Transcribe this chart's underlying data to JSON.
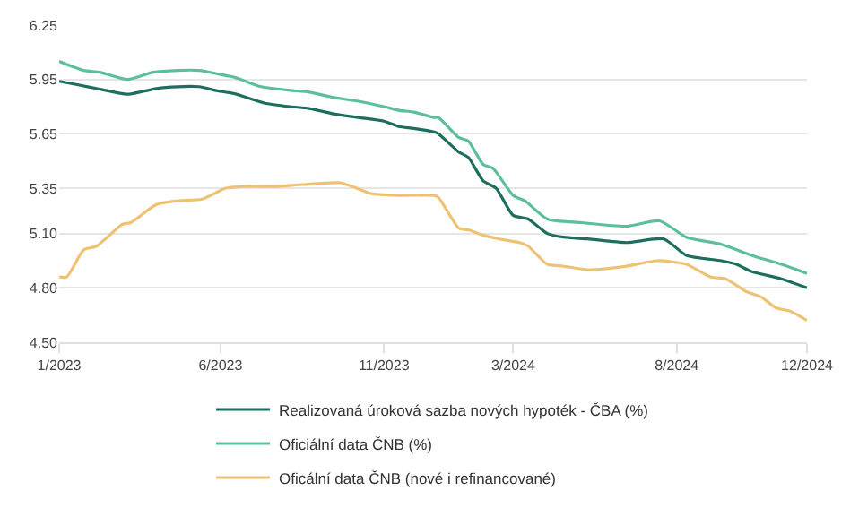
{
  "chart_data": {
    "type": "line",
    "xlim": [
      "2023-01-01",
      "2024-12-01"
    ],
    "xticks": [
      {
        "value": "2023-01",
        "label": "1/2023"
      },
      {
        "value": "2023-06",
        "label": "6/2023"
      },
      {
        "value": "2023-11",
        "label": "11/2023"
      },
      {
        "value": "2024-03",
        "label": "3/2024"
      },
      {
        "value": "2024-08",
        "label": "8/2024"
      },
      {
        "value": "2024-12",
        "label": "12/2024"
      }
    ],
    "ylim": [
      4.5,
      6.25
    ],
    "yticks": [
      {
        "value": 4.5,
        "label": "4.50"
      },
      {
        "value": 4.8,
        "label": "4.80"
      },
      {
        "value": 5.1,
        "label": "5.10"
      },
      {
        "value": 5.35,
        "label": "5.35"
      },
      {
        "value": 5.65,
        "label": "5.65"
      },
      {
        "value": 5.95,
        "label": "5.95"
      },
      {
        "value": 6.25,
        "label": "6.25"
      }
    ],
    "grid": "y",
    "legend": "bottom",
    "line_style": "solid",
    "series": [
      {
        "name": "Realizovaná úroková sazba nových hypoték - ČBA (%)",
        "color": "#1d6e5e",
        "x": [
          "2023-01-01",
          "2023-01-19",
          "2023-02-05",
          "2023-03-03",
          "2023-03-09",
          "2023-04-02",
          "2023-04-22",
          "2023-05-12",
          "2023-05-27",
          "2023-06-15",
          "2023-07-12",
          "2023-08-05",
          "2023-08-23",
          "2023-09-15",
          "2023-10-08",
          "2023-11-01",
          "2023-11-15",
          "2023-11-29",
          "2023-12-18",
          "2023-12-22",
          "2024-01-10",
          "2024-01-19",
          "2024-02-02",
          "2024-02-14",
          "2024-03-01",
          "2024-03-15",
          "2024-04-02",
          "2024-04-17",
          "2024-05-10",
          "2024-06-15",
          "2024-07-20",
          "2024-08-10",
          "2024-09-12",
          "2024-09-26",
          "2024-10-10",
          "2024-11-07",
          "2024-12-01"
        ],
        "values": [
          5.94,
          5.92,
          5.9,
          5.87,
          5.87,
          5.9,
          5.91,
          5.91,
          5.89,
          5.87,
          5.82,
          5.8,
          5.79,
          5.76,
          5.74,
          5.72,
          5.69,
          5.68,
          5.66,
          5.65,
          5.55,
          5.52,
          5.39,
          5.35,
          5.2,
          5.18,
          5.1,
          5.08,
          5.07,
          5.05,
          5.07,
          4.98,
          4.95,
          4.93,
          4.89,
          4.85,
          4.8
        ]
      },
      {
        "name": "Oficiální data ČNB (%)",
        "color": "#5bbf9c",
        "x": [
          "2023-01-01",
          "2023-01-24",
          "2023-02-08",
          "2023-03-06",
          "2023-03-30",
          "2023-04-22",
          "2023-05-12",
          "2023-05-30",
          "2023-06-15",
          "2023-07-09",
          "2023-08-05",
          "2023-08-23",
          "2023-09-15",
          "2023-10-08",
          "2023-11-01",
          "2023-11-15",
          "2023-11-29",
          "2023-12-18",
          "2023-12-22",
          "2024-01-10",
          "2024-01-19",
          "2024-02-02",
          "2024-02-11",
          "2024-03-01",
          "2024-03-12",
          "2024-04-02",
          "2024-05-04",
          "2024-06-15",
          "2024-07-16",
          "2024-08-10",
          "2024-09-12",
          "2024-10-10",
          "2024-11-07",
          "2024-12-01"
        ],
        "values": [
          6.05,
          6,
          5.99,
          5.95,
          5.99,
          6,
          6,
          5.98,
          5.96,
          5.91,
          5.89,
          5.88,
          5.85,
          5.83,
          5.8,
          5.78,
          5.77,
          5.74,
          5.74,
          5.63,
          5.61,
          5.48,
          5.46,
          5.31,
          5.28,
          5.18,
          5.16,
          5.14,
          5.17,
          5.08,
          5.04,
          4.98,
          4.93,
          4.88
        ]
      },
      {
        "name": "Oficální data ČNB (nové i refinancované)",
        "color": "#eec272",
        "x": [
          "2023-01-01",
          "2023-01-08",
          "2023-01-24",
          "2023-02-05",
          "2023-03-01",
          "2023-03-09",
          "2023-04-02",
          "2023-04-22",
          "2023-05-15",
          "2023-06-06",
          "2023-06-24",
          "2023-07-24",
          "2023-08-16",
          "2023-09-21",
          "2023-10-02",
          "2023-10-20",
          "2023-11-15",
          "2023-12-18",
          "2023-12-22",
          "2024-01-10",
          "2024-01-19",
          "2024-02-02",
          "2024-02-17",
          "2024-03-07",
          "2024-03-15",
          "2024-04-02",
          "2024-04-17",
          "2024-05-10",
          "2024-06-15",
          "2024-07-14",
          "2024-08-10",
          "2024-09-02",
          "2024-09-16",
          "2024-10-05",
          "2024-10-19",
          "2024-11-02",
          "2024-11-16",
          "2024-12-01"
        ],
        "values": [
          4.86,
          4.86,
          5.01,
          5.03,
          5.15,
          5.16,
          5.26,
          5.28,
          5.29,
          5.35,
          5.36,
          5.36,
          5.37,
          5.38,
          5.36,
          5.32,
          5.31,
          5.31,
          5.3,
          5.13,
          5.12,
          5.09,
          5.07,
          5.05,
          5.03,
          4.93,
          4.92,
          4.9,
          4.92,
          4.95,
          4.93,
          4.86,
          4.85,
          4.78,
          4.75,
          4.69,
          4.67,
          4.62
        ]
      }
    ]
  }
}
